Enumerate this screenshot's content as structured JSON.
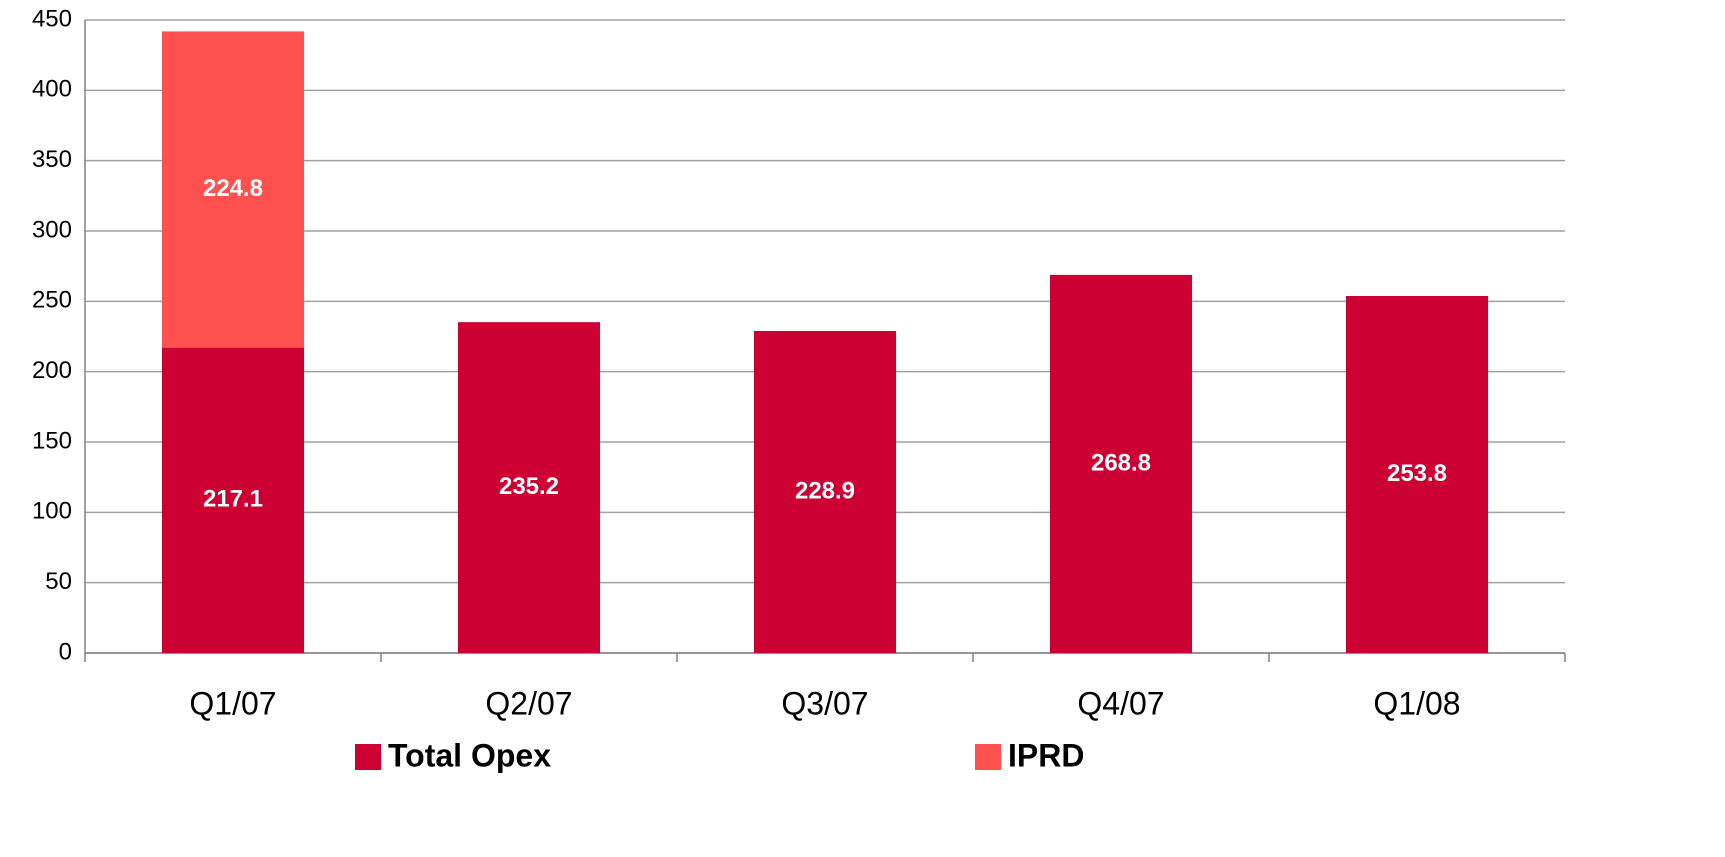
{
  "chart_data": {
    "type": "stacked_bar",
    "categories": [
      "Q1/07",
      "Q2/07",
      "Q3/07",
      "Q4/07",
      "Q1/08"
    ],
    "series": [
      {
        "name": "Total Opex",
        "color": "#cc0033",
        "values": [
          217.1,
          235.2,
          228.9,
          268.8,
          253.8
        ]
      },
      {
        "name": "IPRD",
        "color": "#ff5050",
        "values": [
          224.8,
          null,
          null,
          null,
          null
        ]
      }
    ],
    "ylim": [
      0,
      450
    ],
    "yticks": [
      0,
      50,
      100,
      150,
      200,
      250,
      300,
      350,
      400,
      450
    ],
    "grid": true,
    "legend": "bottom"
  }
}
